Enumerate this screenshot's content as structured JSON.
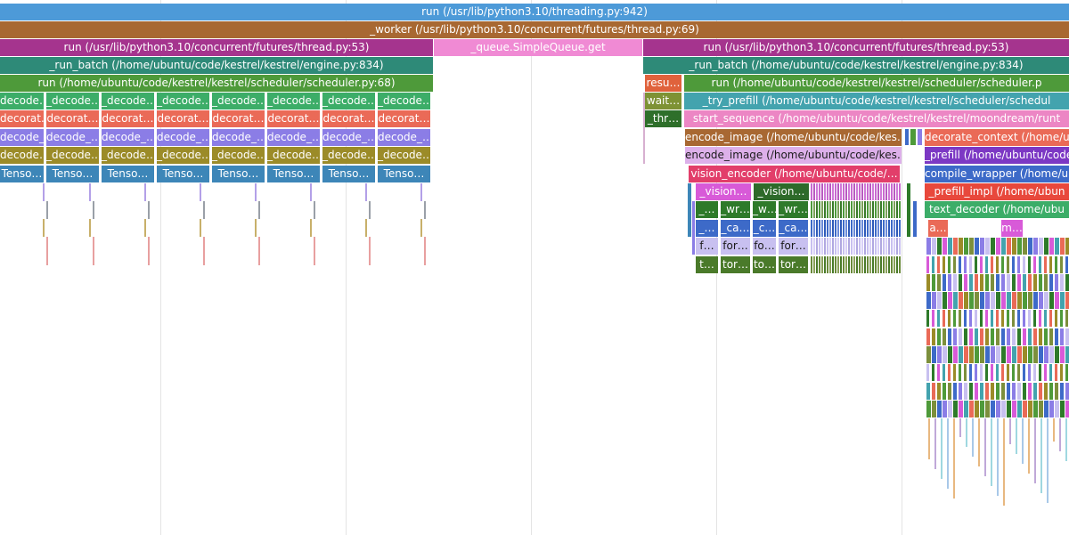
{
  "flame_chart": {
    "frames": {
      "threading_run": "run (/usr/lib/python3.10/threading.py:942)",
      "worker": "_worker (/usr/lib/python3.10/concurrent/futures/thread.py:69)",
      "thread_run_left": "run (/usr/lib/python3.10/concurrent/futures/thread.py:53)",
      "queue_get": "_queue.SimpleQueue.get",
      "thread_run_right": "run (/usr/lib/python3.10/concurrent/futures/thread.py:53)",
      "run_batch_left": "_run_batch (/home/ubuntu/code/kestrel/kestrel/engine.py:834)",
      "run_batch_right": "_run_batch (/home/ubuntu/code/kestrel/kestrel/engine.py:834)",
      "scheduler_run_left": "run (/home/ubuntu/code/kestrel/kestrel/scheduler/scheduler.py:68)",
      "resu": "resu…",
      "scheduler_run_right": "run (/home/ubuntu/code/kestrel/kestrel/scheduler/scheduler.p",
      "wait": "wait…",
      "try_prefill": "_try_prefill (/home/ubuntu/code/kestrel/kestrel/scheduler/schedul",
      "thr": "_thr…",
      "start_sequence": "start_sequence (/home/ubuntu/code/kestrel/kestrel/moondream/runt",
      "encode_image_1": "encode_image (/home/ubuntu/code/kes…",
      "decorate_context": "decorate_context (/home/ubuntu/c",
      "encode_image_2": "encode_image (/home/ubuntu/code/kes…",
      "prefill": "_prefill (/home/ubuntu/code/",
      "vision_encoder": "vision_encoder (/home/ubuntu/code/…",
      "compile_wrapper": "compile_wrapper (/home/ub",
      "vision_1": "_vision…",
      "vision_2": "_vision…",
      "prefill_impl": "_prefill_impl (/home/ubun",
      "text_decoder": "text_decoder (/home/ubu",
      "underscore_1": "_…",
      "wr_1": "_wr…",
      "w_1": "_w…",
      "wr_2": "_wr…",
      "underscore_2": "_…",
      "ca_1": "_ca…",
      "c_1": "_c…",
      "ca_2": "_ca…",
      "a_short": "a…",
      "m_short": "m…",
      "f_short": "f…",
      "for_1": "for…",
      "fo_1": "fo…",
      "for_2": "for…",
      "t_short": "t…",
      "tor_1": "tor…",
      "to_1": "to…",
      "tor_2": "tor…"
    },
    "batch_column": {
      "decode_a": "_decode…",
      "decode_a_first": "decode…",
      "decorat": "decorat…",
      "decorat_first": "decorat…",
      "decode_b": "decode_…",
      "decode_c": "_decode…",
      "decode_c_first": "decode…",
      "tenso": "Tenso…"
    },
    "colors": {
      "blue": "#4d9ad8",
      "brown": "#a86832",
      "magenta": "#a5348e",
      "pink": "#f08ad4",
      "teal": "#2e8a78",
      "green": "#4e9a3a",
      "green_light": "#3cad68",
      "salmon": "#ea6a57",
      "lavender": "#8b7de6",
      "olive": "#9b8b28",
      "steel": "#3d86b8"
    }
  }
}
